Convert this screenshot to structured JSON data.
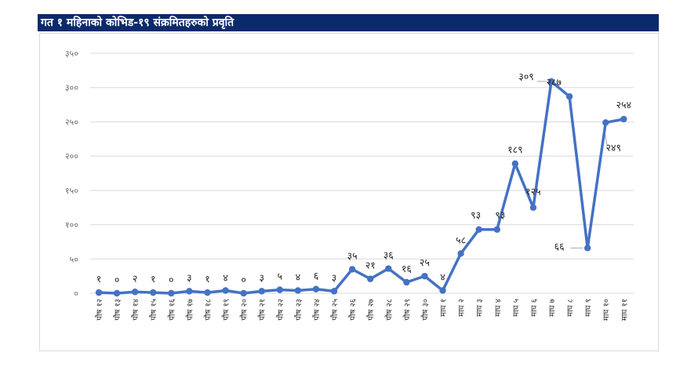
{
  "chart_data": {
    "type": "line",
    "title": "गत १ महिनाको कोभिड-१९ संक्रमितहरुको प्रवृति",
    "xlabel": "",
    "ylabel": "",
    "ylim": [
      0,
      350
    ],
    "yticks": [
      "०",
      "५०",
      "१००",
      "१५०",
      "२००",
      "२५०",
      "३००",
      "३५०"
    ],
    "grid": true,
    "legend": "none",
    "series_color": "#4472c4",
    "categories": [
      "पौष १२",
      "पौष १३",
      "पौष १४",
      "पौष १५",
      "पौष १६",
      "पौष १७",
      "पौष १८",
      "पौष १९",
      "पौष २०",
      "पौष २१",
      "पौष २२",
      "पौष २३",
      "पौष २४",
      "पौष २५",
      "पौष २६",
      "पौष २७",
      "पौष २८",
      "पौष २९",
      "पौष ३०",
      "माघ १",
      "माघ २",
      "माघ ३",
      "माघ ४",
      "माघ ५",
      "माघ ६",
      "माघ ७",
      "माघ ८",
      "माघ ९",
      "माघ १०",
      "माघ ११"
    ],
    "values": [
      1,
      0,
      2,
      1,
      0,
      3,
      1,
      4,
      0,
      3,
      5,
      4,
      6,
      3,
      35,
      21,
      36,
      16,
      25,
      4,
      58,
      93,
      93,
      189,
      125,
      309,
      287,
      66,
      249,
      254
    ],
    "data_labels": [
      "१",
      "०",
      "२",
      "१",
      "०",
      "३",
      "१",
      "४",
      "०",
      "३",
      "५",
      "४",
      "६",
      "३",
      "३५",
      "२१",
      "३६",
      "१६",
      "२५",
      "४",
      "५८",
      "९३",
      "९३",
      "१८९",
      "१२५",
      "३०९",
      "२८७",
      "६६",
      "२४९",
      "२५४"
    ]
  }
}
